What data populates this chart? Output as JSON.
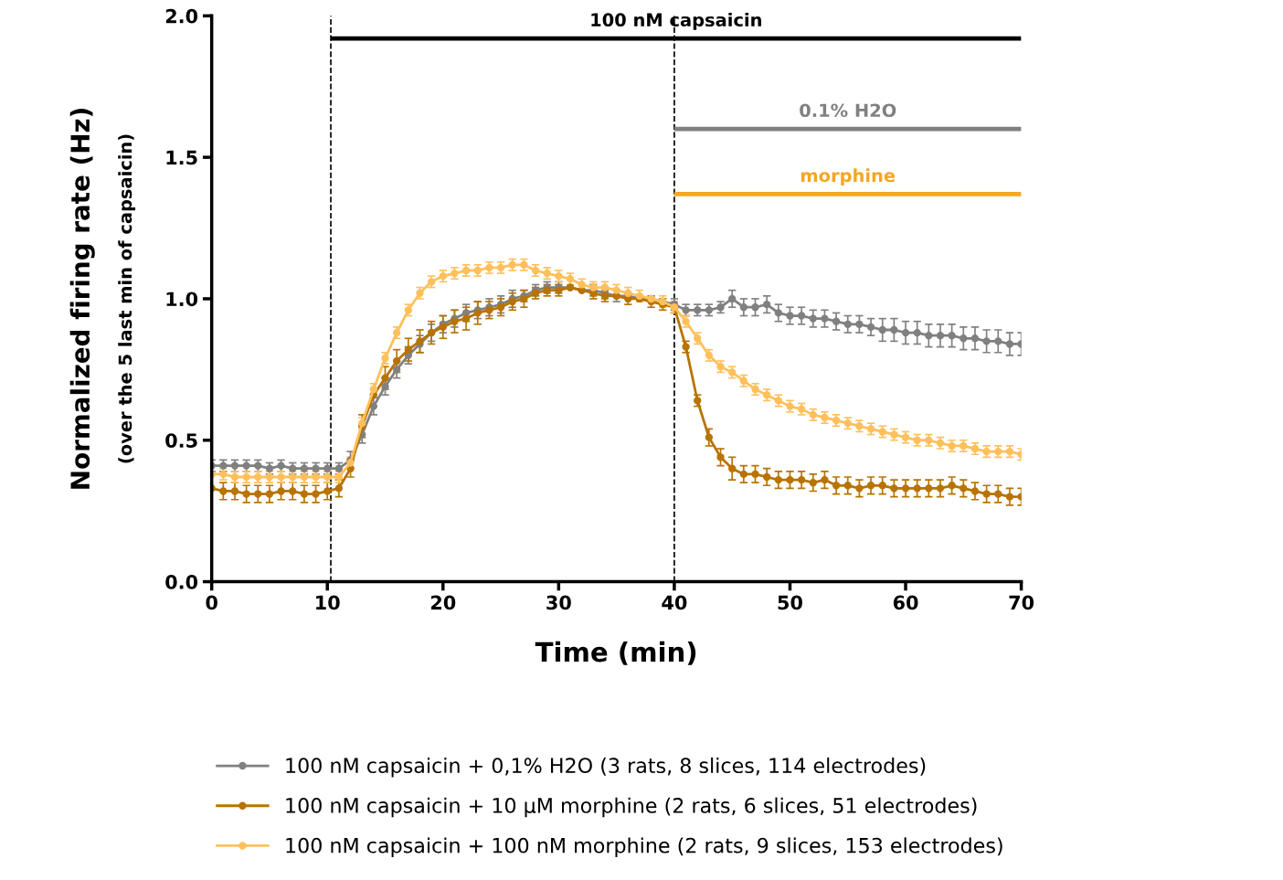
{
  "chart_data": {
    "type": "line",
    "xlabel": "Time (min)",
    "ylabel": "Normalized firing rate (Hz)",
    "annotations": [
      "(over the 5 last min of capsaicin)"
    ],
    "xlim": [
      0,
      70
    ],
    "xticks": [
      0,
      10,
      20,
      30,
      40,
      50,
      60,
      70
    ],
    "ylim": [
      0,
      2.0
    ],
    "yticks": [
      {
        "value": 0,
        "label": "0.0"
      },
      {
        "value": 0.5,
        "label": "0.5"
      },
      {
        "value": 1.0,
        "label": "1.0"
      },
      {
        "value": 1.5,
        "label": "1.5"
      },
      {
        "value": 2.0,
        "label": "2.0"
      }
    ],
    "x": [
      0,
      1,
      2,
      3,
      4,
      5,
      6,
      7,
      8,
      9,
      10,
      11,
      12,
      13,
      14,
      15,
      16,
      17,
      18,
      19,
      20,
      21,
      22,
      23,
      24,
      25,
      26,
      27,
      28,
      29,
      30,
      31,
      32,
      33,
      34,
      35,
      36,
      37,
      38,
      39,
      40,
      41,
      42,
      43,
      44,
      45,
      46,
      47,
      48,
      49,
      50,
      51,
      52,
      53,
      54,
      55,
      56,
      57,
      58,
      59,
      60,
      61,
      62,
      63,
      64,
      65,
      66,
      67,
      68,
      69,
      70
    ],
    "marker": "circle",
    "line_style": "solid",
    "grid": false,
    "legend": "bottom",
    "ref_lines": [
      {
        "axis": "x",
        "value": 10.3,
        "color": "#000000",
        "line_style": "dashed"
      },
      {
        "axis": "x",
        "value": 40,
        "color": "#000000",
        "line_style": "dashed"
      }
    ],
    "series": [
      {
        "name": "100 nM capsaicin + 0,1% H2O (3 rats, 8 slices, 114 electrodes)",
        "color": "#808080",
        "values": [
          0.41,
          0.41,
          0.41,
          0.41,
          0.41,
          0.4,
          0.41,
          0.4,
          0.4,
          0.4,
          0.4,
          0.4,
          0.43,
          0.52,
          0.62,
          0.69,
          0.75,
          0.8,
          0.84,
          0.88,
          0.91,
          0.93,
          0.95,
          0.96,
          0.97,
          0.98,
          1.0,
          1.01,
          1.03,
          1.04,
          1.04,
          1.04,
          1.03,
          1.03,
          1.02,
          1.01,
          1.01,
          1.0,
          1.0,
          0.99,
          0.98,
          0.96,
          0.96,
          0.96,
          0.97,
          1.0,
          0.97,
          0.97,
          0.98,
          0.95,
          0.94,
          0.94,
          0.93,
          0.93,
          0.92,
          0.91,
          0.91,
          0.9,
          0.89,
          0.89,
          0.88,
          0.88,
          0.87,
          0.87,
          0.87,
          0.86,
          0.86,
          0.85,
          0.85,
          0.84,
          0.84
        ],
        "errors": [
          0.02,
          0.02,
          0.02,
          0.02,
          0.02,
          0.02,
          0.02,
          0.02,
          0.02,
          0.02,
          0.02,
          0.02,
          0.03,
          0.03,
          0.03,
          0.03,
          0.03,
          0.03,
          0.03,
          0.03,
          0.03,
          0.03,
          0.03,
          0.03,
          0.03,
          0.03,
          0.03,
          0.02,
          0.02,
          0.02,
          0.02,
          null,
          null,
          0.02,
          0.02,
          0.02,
          null,
          null,
          null,
          null,
          0.02,
          0.02,
          0.02,
          0.02,
          0.02,
          0.03,
          0.03,
          0.03,
          0.03,
          0.03,
          0.03,
          0.03,
          0.03,
          0.03,
          0.03,
          0.03,
          0.03,
          0.03,
          0.04,
          0.04,
          0.04,
          0.04,
          0.04,
          0.04,
          0.04,
          0.04,
          0.04,
          0.04,
          0.04,
          0.04,
          0.04
        ]
      },
      {
        "name": "100 nM capsaicin + 10 µM morphine (2 rats, 6 slices, 51 electrodes)",
        "color": "#b87300",
        "values": [
          0.33,
          0.32,
          0.32,
          0.31,
          0.31,
          0.31,
          0.32,
          0.32,
          0.31,
          0.31,
          0.32,
          0.33,
          0.4,
          0.55,
          0.66,
          0.72,
          0.78,
          0.82,
          0.85,
          0.88,
          0.9,
          0.92,
          0.93,
          0.95,
          0.96,
          0.97,
          0.99,
          1.0,
          1.02,
          1.03,
          1.03,
          1.04,
          1.03,
          1.02,
          1.01,
          1.01,
          1.0,
          1.0,
          0.99,
          0.98,
          0.97,
          0.83,
          0.64,
          0.51,
          0.44,
          0.4,
          0.38,
          0.38,
          0.37,
          0.36,
          0.36,
          0.36,
          0.35,
          0.36,
          0.34,
          0.34,
          0.33,
          0.34,
          0.34,
          0.33,
          0.33,
          0.33,
          0.33,
          0.33,
          0.34,
          0.33,
          0.32,
          0.31,
          0.31,
          0.3,
          0.3
        ],
        "errors": [
          null,
          0.03,
          0.03,
          0.03,
          0.03,
          0.03,
          0.03,
          0.03,
          0.03,
          0.03,
          0.03,
          0.03,
          0.03,
          0.04,
          null,
          0.04,
          0.04,
          0.04,
          0.04,
          0.04,
          0.04,
          0.04,
          0.04,
          0.04,
          0.03,
          0.03,
          0.03,
          0.03,
          0.02,
          0.02,
          0.02,
          null,
          null,
          0.02,
          0.02,
          null,
          0.02,
          null,
          0.02,
          0.02,
          0.02,
          0.02,
          0.02,
          0.03,
          0.03,
          0.04,
          0.03,
          0.03,
          0.03,
          0.03,
          0.03,
          0.03,
          0.03,
          0.03,
          0.03,
          0.03,
          0.03,
          0.03,
          0.03,
          0.03,
          0.03,
          0.03,
          0.03,
          0.03,
          0.03,
          0.03,
          0.03,
          0.03,
          0.03,
          0.03,
          0.03
        ]
      },
      {
        "name": "100 nM capsaicin + 100 nM morphine (2 rats, 9 slices, 153 electrodes)",
        "color": "#ffc05c",
        "values": [
          0.38,
          0.38,
          0.37,
          0.37,
          0.37,
          0.37,
          0.37,
          0.37,
          0.37,
          0.37,
          0.37,
          0.37,
          0.42,
          0.56,
          0.68,
          0.79,
          0.88,
          0.96,
          1.02,
          1.06,
          1.08,
          1.09,
          1.1,
          1.1,
          1.11,
          1.11,
          1.12,
          1.12,
          1.1,
          1.09,
          1.08,
          1.07,
          1.05,
          1.04,
          1.04,
          1.03,
          1.02,
          1.01,
          1.0,
          0.99,
          0.97,
          0.92,
          0.86,
          0.8,
          0.76,
          0.74,
          0.71,
          0.68,
          0.66,
          0.64,
          0.62,
          0.61,
          0.59,
          0.58,
          0.57,
          0.56,
          0.55,
          0.54,
          0.53,
          0.52,
          0.51,
          0.5,
          0.5,
          0.49,
          0.48,
          0.48,
          0.47,
          0.46,
          0.46,
          0.46,
          0.45
        ],
        "errors": [
          null,
          0.02,
          0.02,
          0.02,
          0.02,
          0.02,
          0.02,
          0.02,
          0.02,
          0.02,
          0.02,
          0.02,
          0.02,
          0.02,
          0.02,
          0.02,
          0.02,
          0.02,
          0.02,
          0.02,
          0.02,
          0.02,
          0.02,
          0.02,
          0.02,
          0.02,
          0.02,
          0.02,
          0.02,
          0.02,
          0.02,
          0.02,
          0.02,
          0.02,
          0.02,
          0.02,
          0.02,
          0.02,
          null,
          0.02,
          0.02,
          0.02,
          0.02,
          0.02,
          0.02,
          0.02,
          0.02,
          0.02,
          0.02,
          0.02,
          0.02,
          0.02,
          0.02,
          0.02,
          0.02,
          0.02,
          0.02,
          0.02,
          0.02,
          0.02,
          0.02,
          0.02,
          0.02,
          0.02,
          0.02,
          0.02,
          0.02,
          0.02,
          0.02,
          0.02,
          0.02
        ]
      },
      {
        "name": "100 nM capsaicin",
        "color": "#000000",
        "x": [
          10.3,
          70
        ],
        "values": [
          1.92,
          1.92
        ],
        "marker": "none"
      },
      {
        "name": "0.1% H2O",
        "color": "#808080",
        "x": [
          40,
          70
        ],
        "values": [
          1.6,
          1.6
        ],
        "marker": "none"
      },
      {
        "name": "morphine",
        "color": "#f5a623",
        "x": [
          40,
          70
        ],
        "values": [
          1.37,
          1.37
        ],
        "marker": "none"
      }
    ]
  }
}
